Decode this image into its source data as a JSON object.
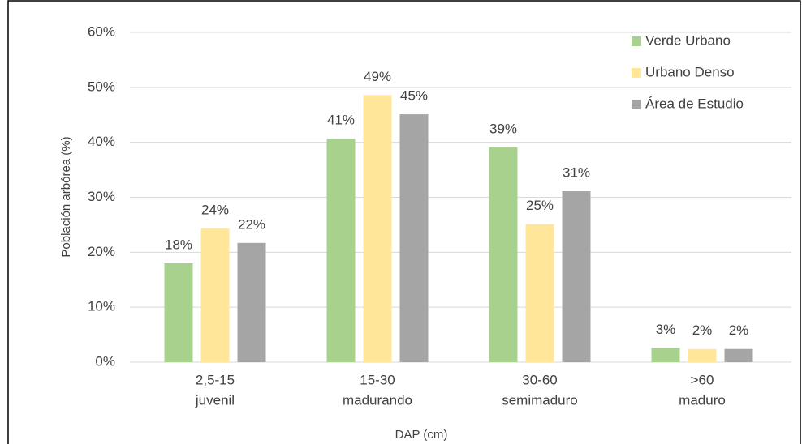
{
  "chart_data": {
    "type": "bar",
    "categories": [
      [
        "2,5-15",
        "juvenil"
      ],
      [
        "15-30",
        "madurando"
      ],
      [
        "30-60",
        "semimaduro"
      ],
      [
        ">60",
        "maduro"
      ]
    ],
    "series": [
      {
        "name": "Verde Urbano",
        "color": "#a9d18e",
        "values": [
          18.0,
          40.7,
          39.1,
          2.6
        ],
        "value_labels": [
          "18%",
          "41%",
          "39%",
          "3%"
        ]
      },
      {
        "name": "Urbano Denso",
        "color": "#ffe699",
        "values": [
          24.3,
          48.6,
          25.1,
          2.4
        ],
        "value_labels": [
          "24%",
          "49%",
          "25%",
          "2%"
        ]
      },
      {
        "name": "Área de Estudio",
        "color": "#a5a5a5",
        "values": [
          21.7,
          45.1,
          31.1,
          2.4
        ],
        "value_labels": [
          "22%",
          "45%",
          "31%",
          "2%"
        ]
      }
    ],
    "ylabel": "Población arbórea (%)",
    "xlabel": "DAP (cm)",
    "ylim": [
      0,
      60
    ],
    "yticks": [
      {
        "value": 0,
        "label": "0%"
      },
      {
        "value": 10,
        "label": "10%"
      },
      {
        "value": 20,
        "label": "20%"
      },
      {
        "value": 30,
        "label": "30%"
      },
      {
        "value": 40,
        "label": "40%"
      },
      {
        "value": 50,
        "label": "50%"
      },
      {
        "value": 60,
        "label": "60%"
      }
    ],
    "grid": true,
    "legend": "upper right"
  }
}
